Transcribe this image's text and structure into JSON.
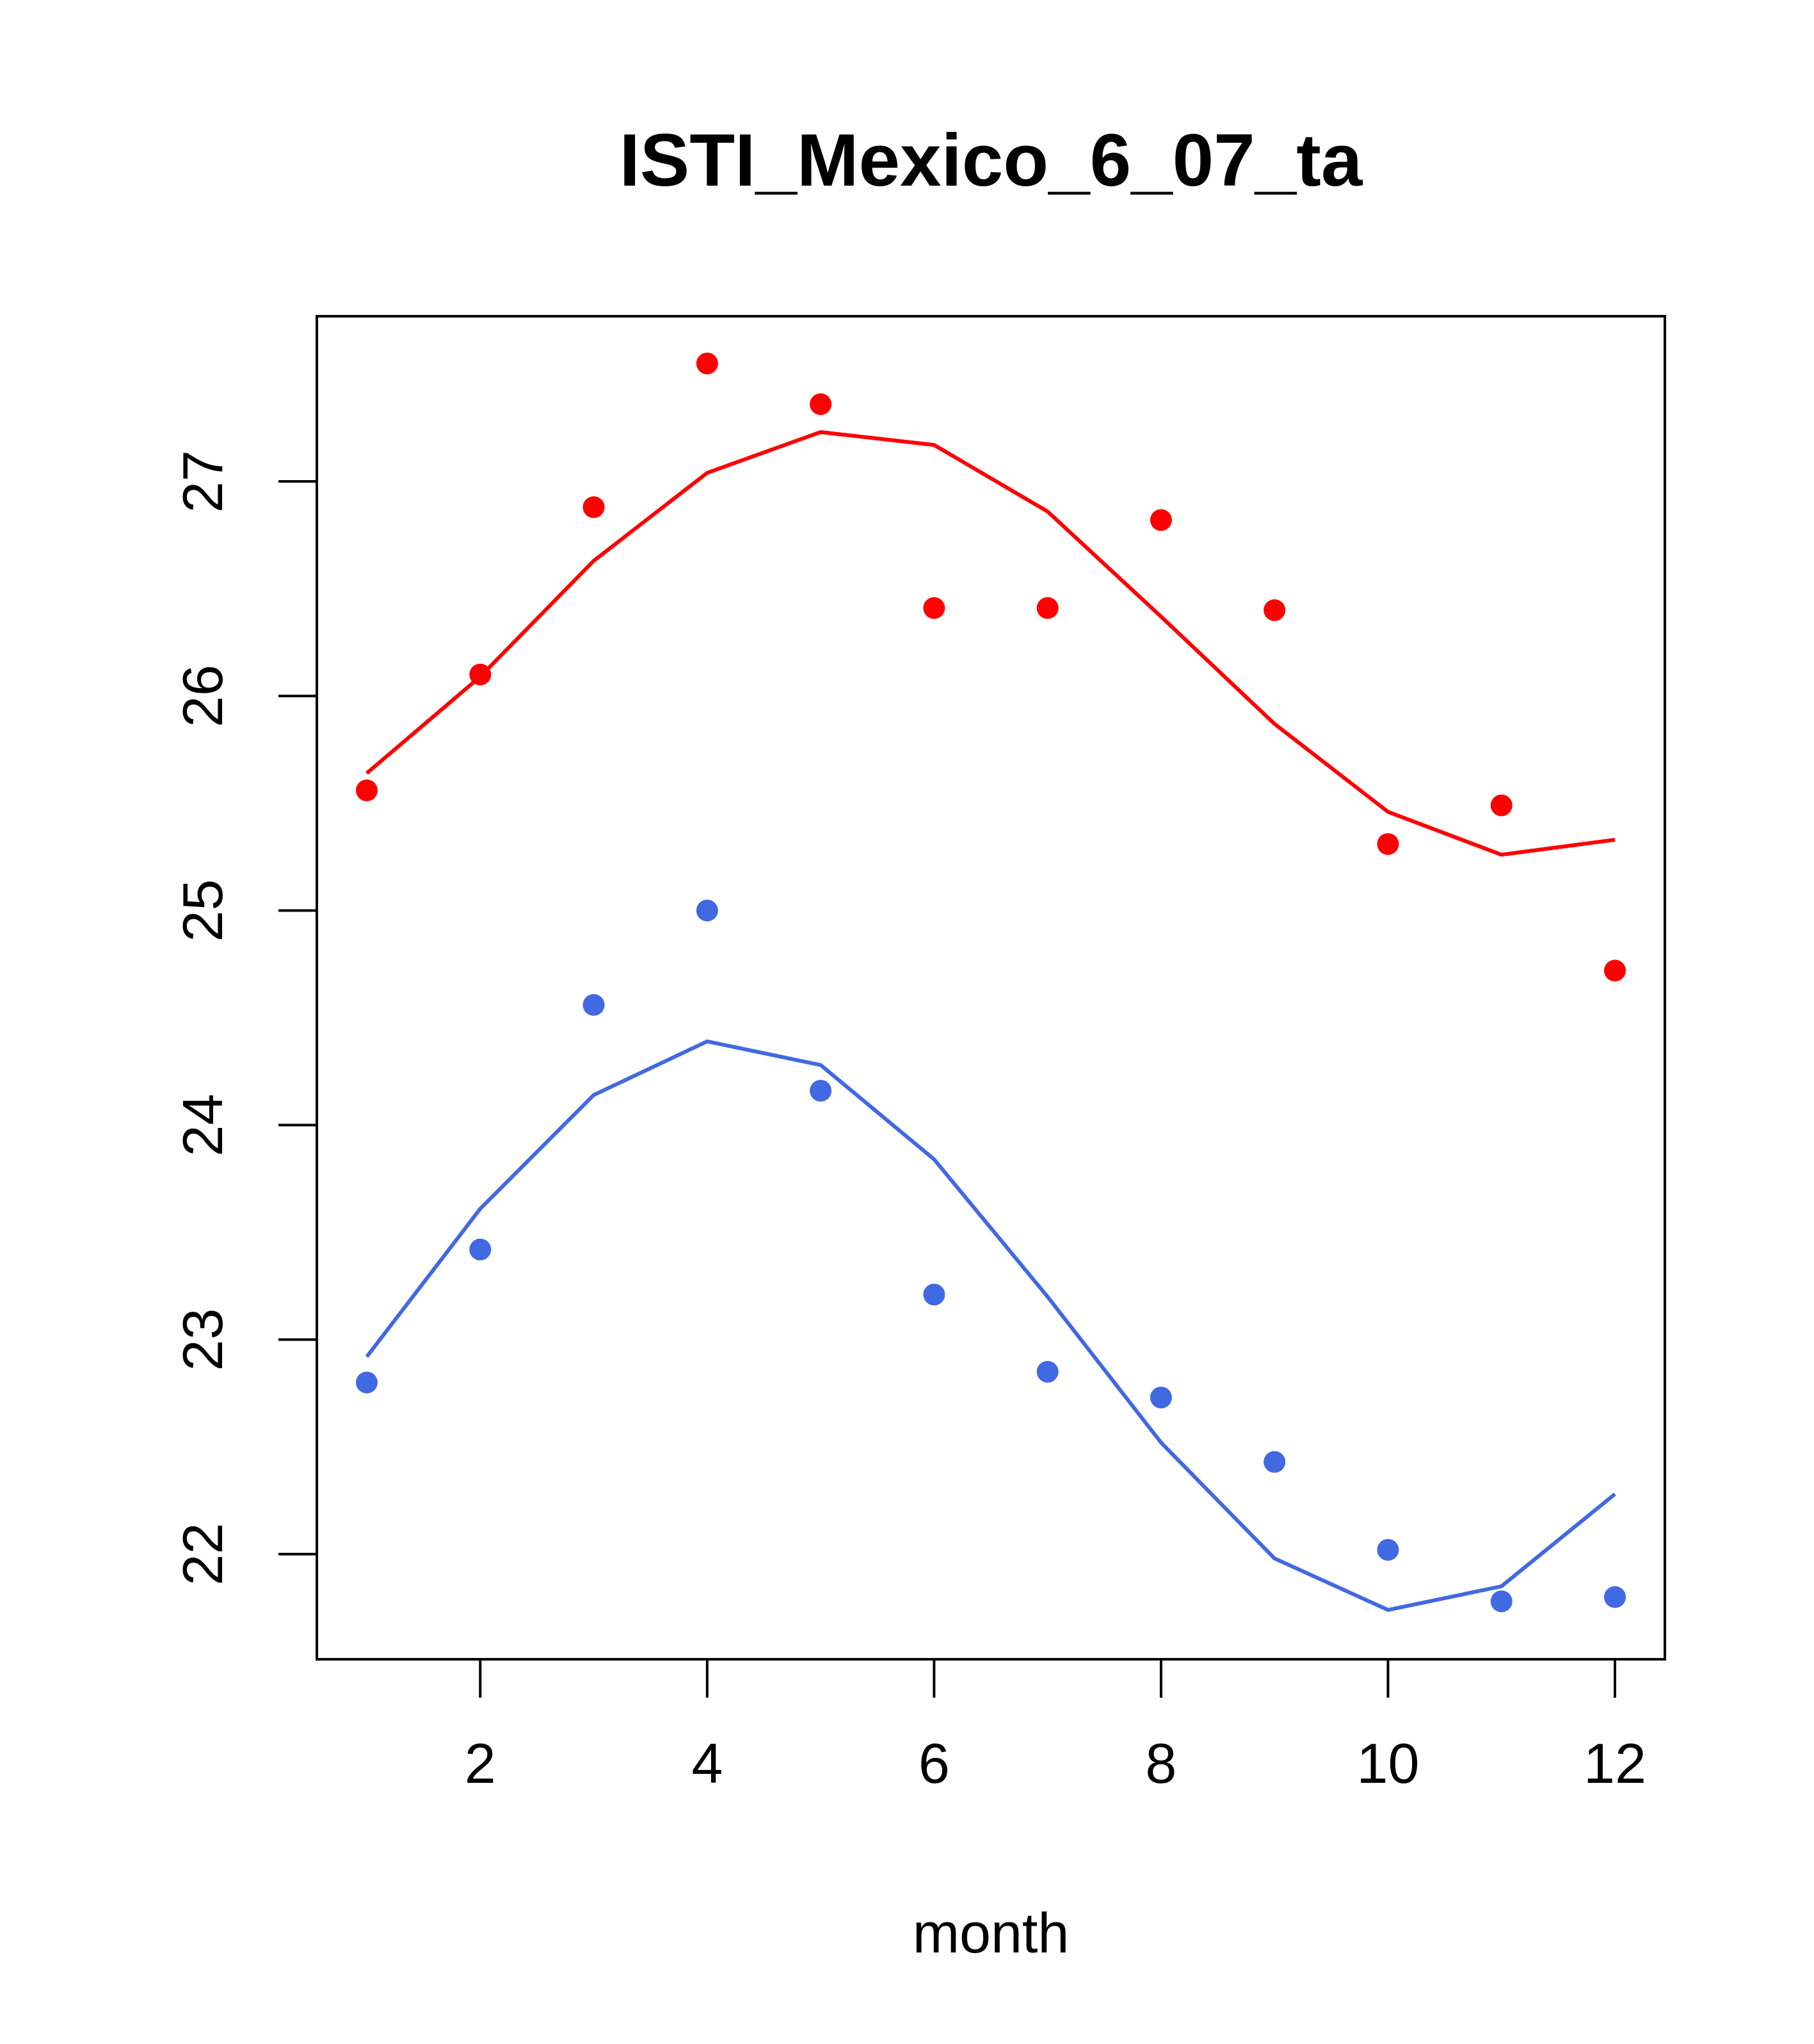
{
  "chart_data": {
    "type": "scatter",
    "title": "ISTI_Mexico_6_07_ta",
    "xlabel": "month",
    "ylabel": "",
    "xlim": [
      0.56,
      12.44
    ],
    "ylim": [
      21.51,
      27.77
    ],
    "x_ticks": [
      2,
      4,
      6,
      8,
      10,
      12
    ],
    "y_ticks": [
      22,
      23,
      24,
      25,
      26,
      27
    ],
    "x_tick_labels": [
      "2",
      "4",
      "6",
      "8",
      "10",
      "12"
    ],
    "y_tick_labels": [
      "22",
      "23",
      "24",
      "25",
      "26",
      "27"
    ],
    "grid": false,
    "legend": "none",
    "x": [
      1,
      2,
      3,
      4,
      5,
      6,
      7,
      8,
      9,
      10,
      11,
      12
    ],
    "series": [
      {
        "color": "#ff0000",
        "points": [
          25.56,
          26.1,
          26.88,
          27.55,
          27.36,
          26.41,
          26.41,
          26.82,
          26.4,
          25.31,
          25.49,
          24.72
        ],
        "line": [
          25.64,
          26.09,
          26.63,
          27.04,
          27.23,
          27.17,
          26.86,
          26.37,
          25.87,
          25.46,
          25.26,
          25.33
        ]
      },
      {
        "color": "#4169e1",
        "points": [
          22.8,
          23.42,
          24.56,
          25.0,
          24.16,
          23.21,
          22.85,
          22.73,
          22.43,
          22.02,
          21.78,
          21.8
        ],
        "line": [
          22.92,
          23.61,
          24.14,
          24.39,
          24.28,
          23.84,
          23.2,
          22.52,
          21.98,
          21.74,
          21.85,
          22.28
        ]
      }
    ]
  }
}
